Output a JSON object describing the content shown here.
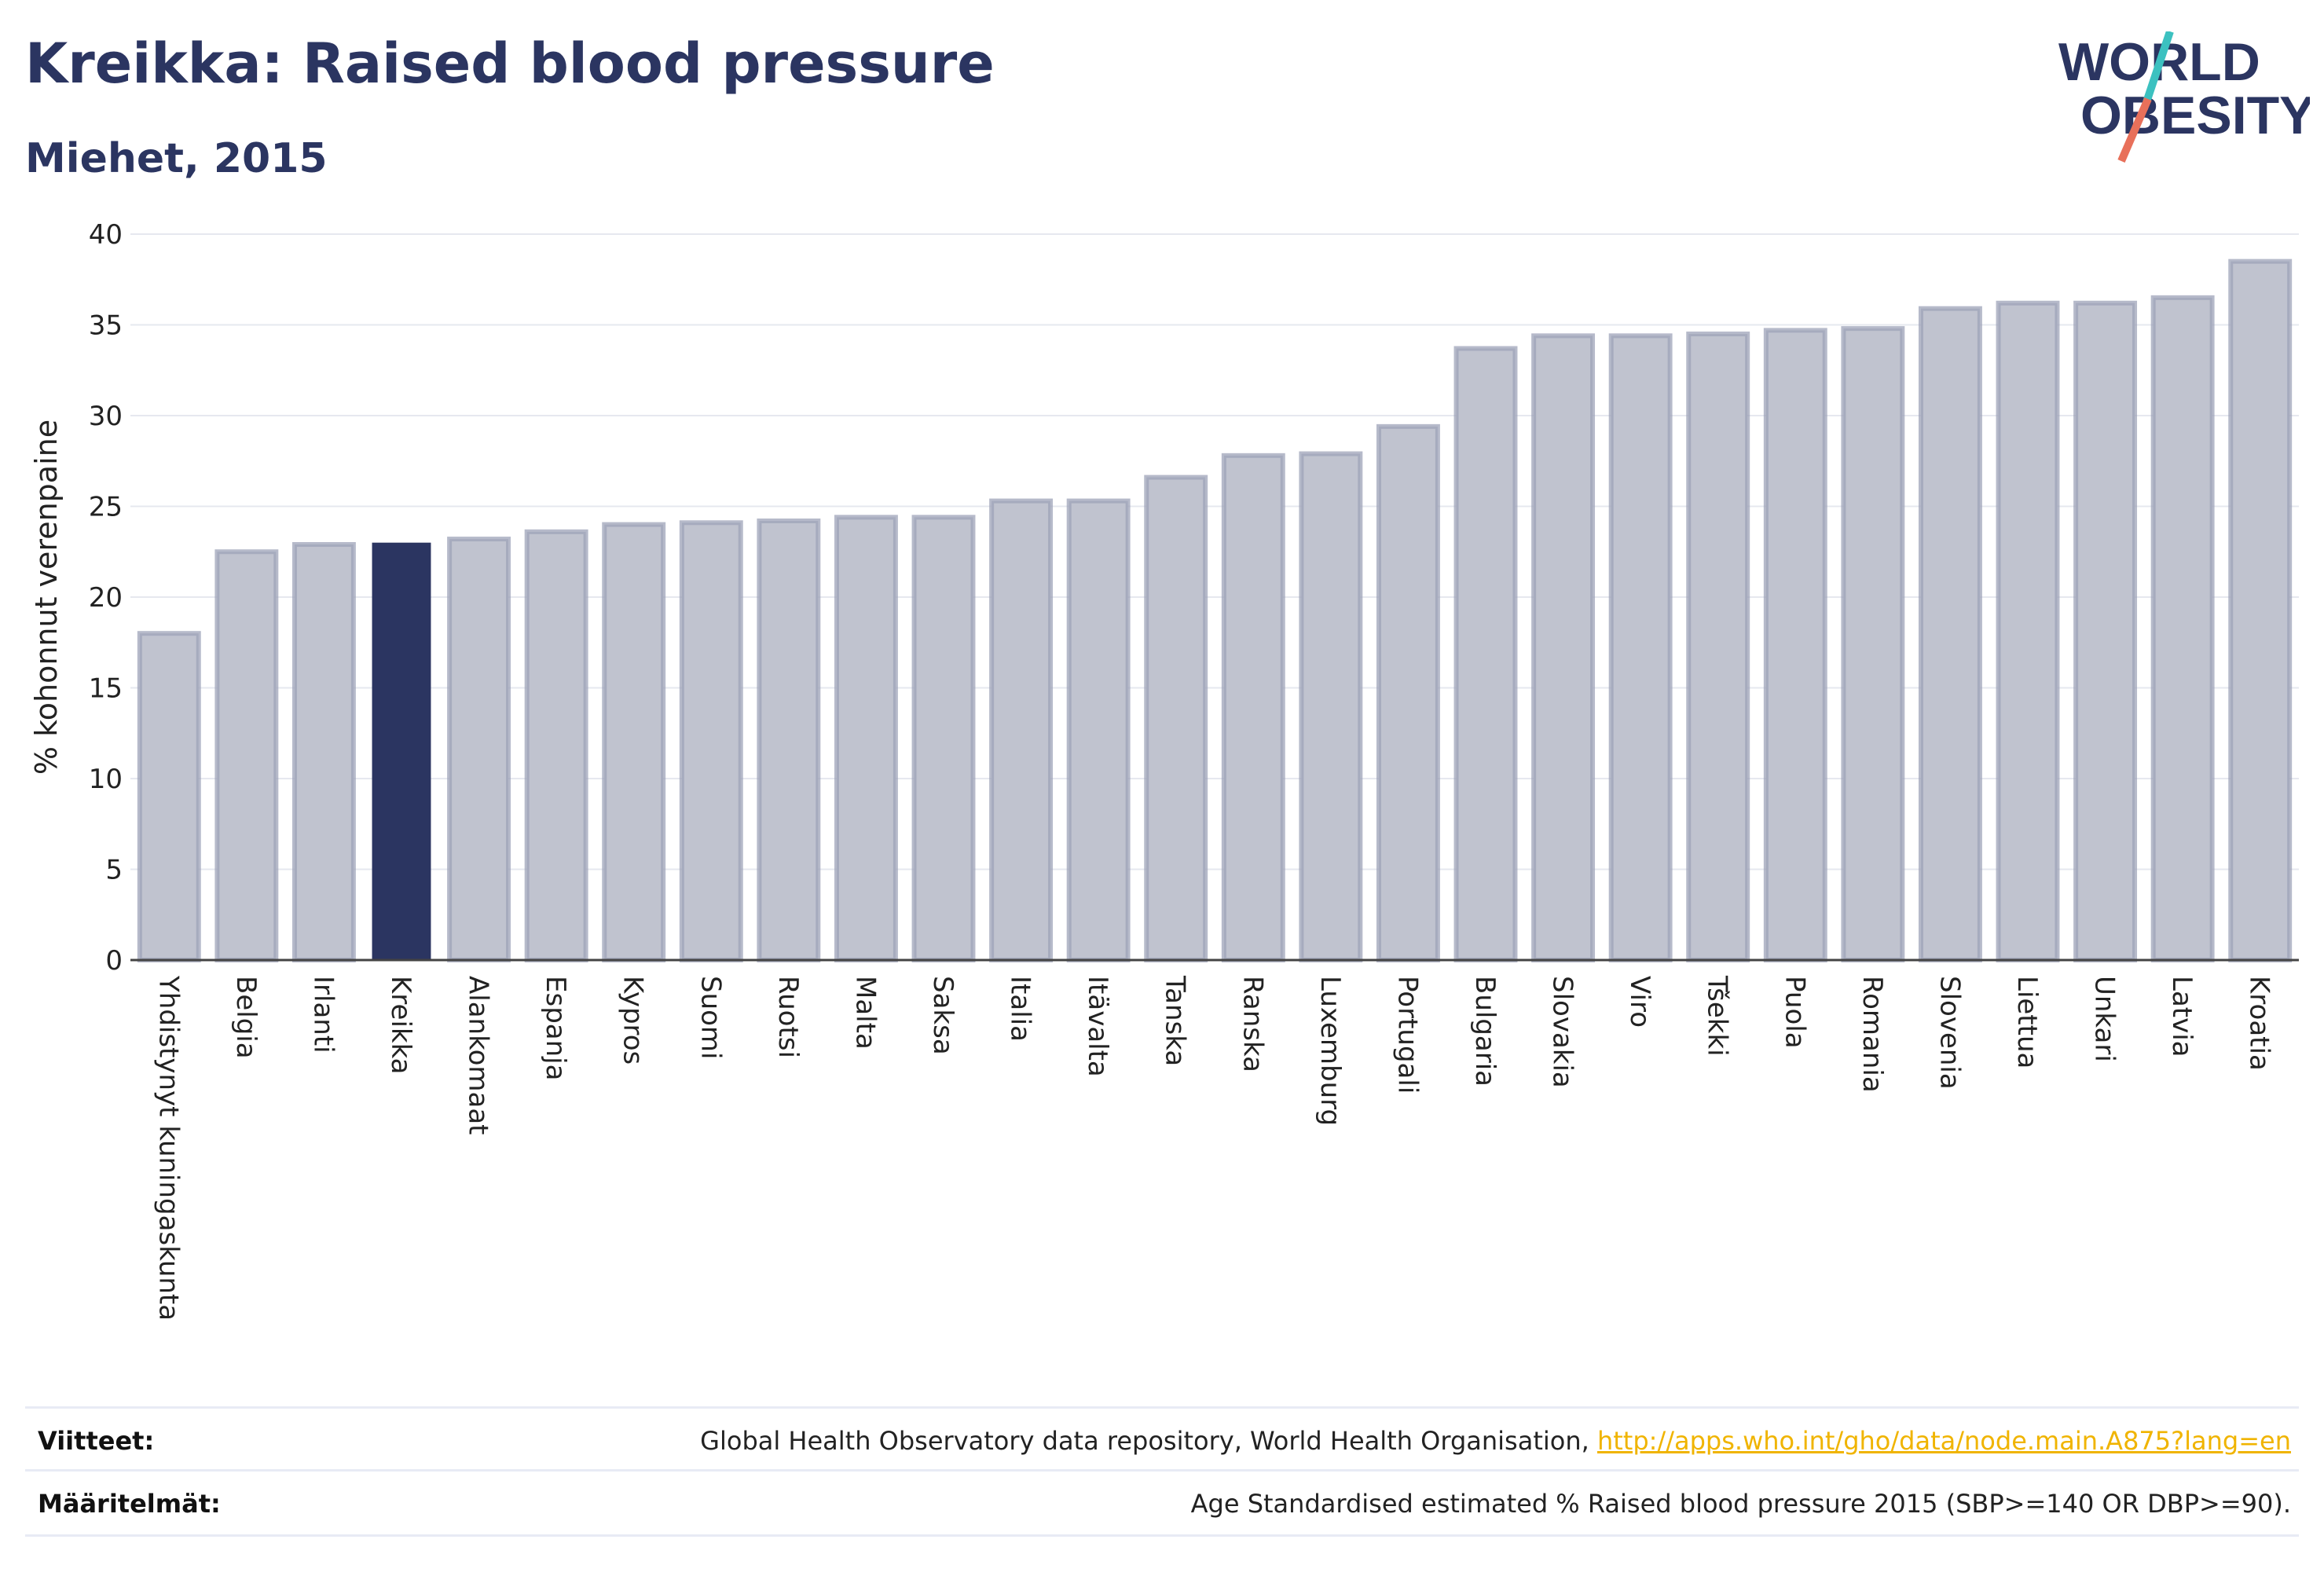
{
  "header": {
    "title": "Kreikka: Raised blood pressure",
    "subtitle": "Miehet, 2015",
    "logo_line1": "WORLD",
    "logo_line2": "OBESITY"
  },
  "colors": {
    "title": "#2b3561",
    "bar_default": "#c0c3cf",
    "bar_default_border": "#9ea3b8",
    "bar_highlight": "#2b3561",
    "logo_teal": "#3cc1c0",
    "logo_coral": "#e8705a",
    "link": "#f0b400"
  },
  "chart_data": {
    "type": "bar",
    "title": "Kreikka: Raised blood pressure",
    "subtitle": "Miehet, 2015",
    "ylabel": "% kohonnut verenpaine",
    "xlabel": "",
    "ylim": [
      0,
      40
    ],
    "yticks": [
      0,
      5,
      10,
      15,
      20,
      25,
      30,
      35,
      40
    ],
    "grid": true,
    "highlight": "Kreikka",
    "categories": [
      "Yhdistynyt kuningaskunta",
      "Belgia",
      "Irlanti",
      "Kreikka",
      "Alankomaat",
      "Espanja",
      "Kypros",
      "Suomi",
      "Ruotsi",
      "Malta",
      "Saksa",
      "Italia",
      "Itävalta",
      "Tanska",
      "Ranska",
      "Luxemburg",
      "Portugali",
      "Bulgaria",
      "Slovakia",
      "Viro",
      "Tšekki",
      "Puola",
      "Romania",
      "Slovenia",
      "Liettua",
      "Unkari",
      "Latvia",
      "Kroatia"
    ],
    "values": [
      18.0,
      22.5,
      22.9,
      23.0,
      23.2,
      23.6,
      24.0,
      24.1,
      24.2,
      24.4,
      24.4,
      25.3,
      25.3,
      26.6,
      27.8,
      27.9,
      29.4,
      33.7,
      34.4,
      34.4,
      34.5,
      34.7,
      34.8,
      35.9,
      36.2,
      36.2,
      36.5,
      38.5
    ]
  },
  "footer": {
    "sources_label": "Viitteet:",
    "sources_text": "Global Health Observatory data repository, World Health Organisation, ",
    "sources_link": "http://apps.who.int/gho/data/node.main.A875?lang=en",
    "definitions_label": "Määritelmät:",
    "definitions_text": "Age Standardised estimated % Raised blood pressure 2015 (SBP>=140 OR DBP>=90)."
  }
}
